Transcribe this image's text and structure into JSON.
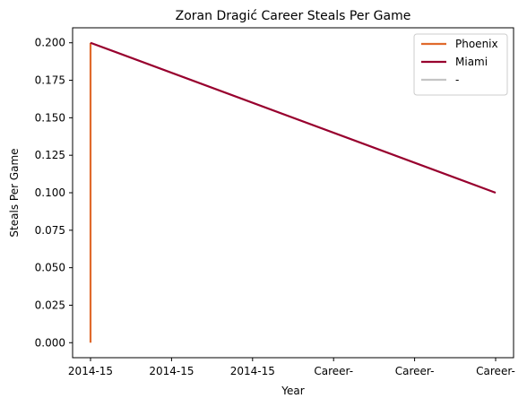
{
  "chart_data": {
    "type": "line",
    "title": "Zoran Dragić Career Steals Per Game",
    "xlabel": "Year",
    "ylabel": "Steals Per Game",
    "x_tick_labels": [
      "2014-15",
      "2014-15",
      "2014-15",
      "Career-",
      "Career-",
      "Career-"
    ],
    "ylim": [
      -0.01,
      0.21
    ],
    "y_ticks": [
      0.0,
      0.025,
      0.05,
      0.075,
      0.1,
      0.125,
      0.15,
      0.175,
      0.2
    ],
    "y_tick_labels": [
      "0.000",
      "0.025",
      "0.050",
      "0.075",
      "0.100",
      "0.125",
      "0.150",
      "0.175",
      "0.200"
    ],
    "grid": false,
    "legend_position": "top-right",
    "series": [
      {
        "name": "Phoenix",
        "color": "#e06a2c",
        "points": [
          {
            "x": 0,
            "y": 0.0
          },
          {
            "x": 0,
            "y": 0.2
          }
        ]
      },
      {
        "name": "Miami",
        "color": "#98002e",
        "points": [
          {
            "x": 0,
            "y": 0.2
          },
          {
            "x": 5,
            "y": 0.1
          }
        ]
      },
      {
        "name": "-",
        "color": "#c4c4c4",
        "points": []
      }
    ]
  }
}
